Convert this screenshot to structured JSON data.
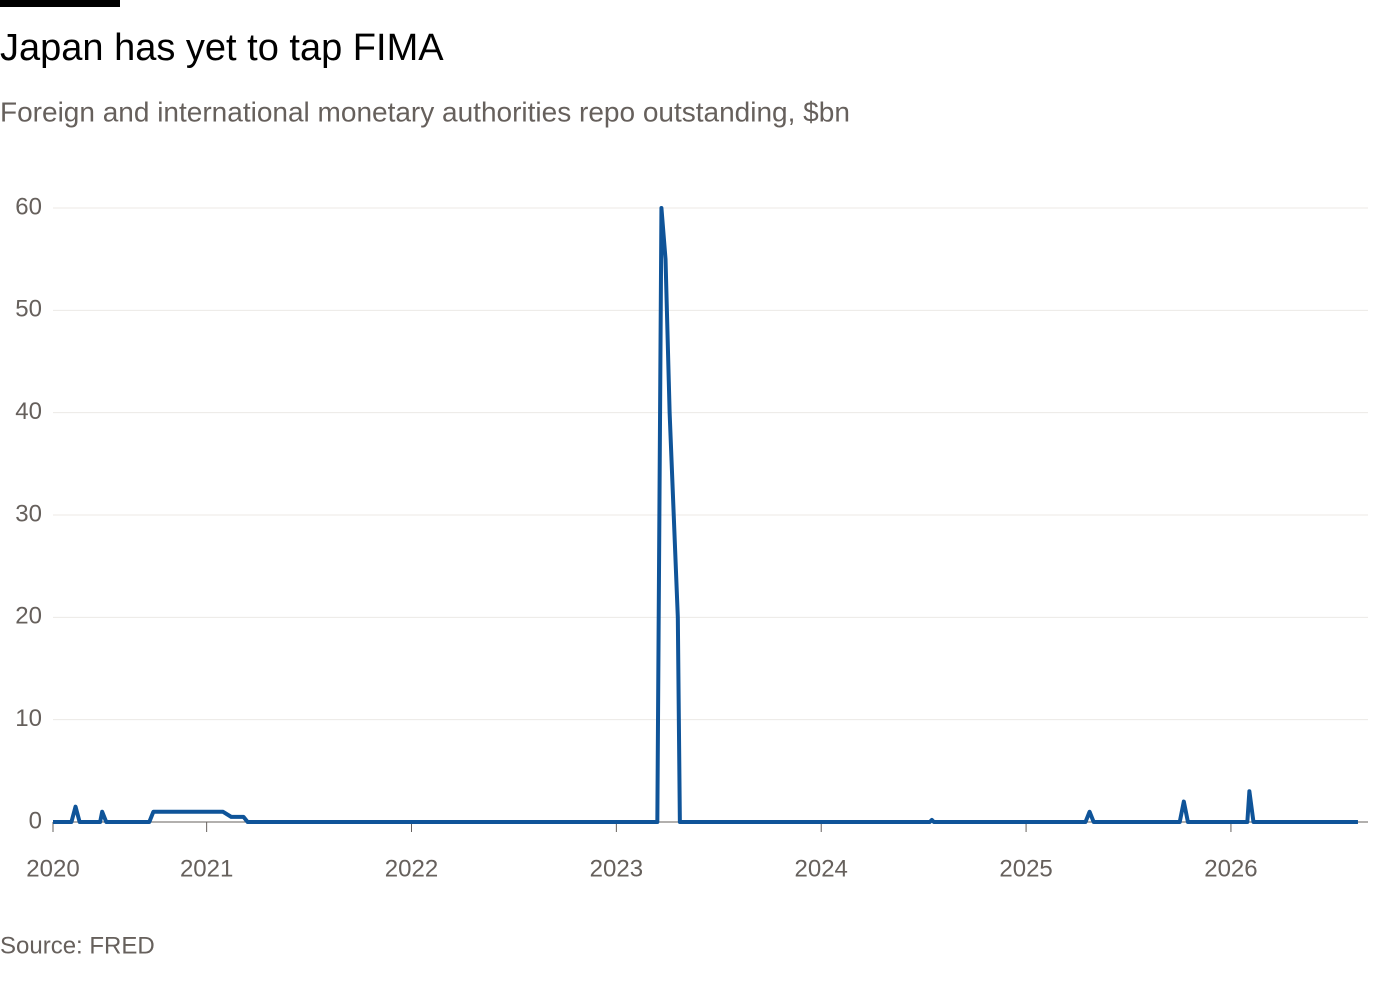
{
  "chart_data": {
    "type": "line",
    "title": "Japan has yet to tap FIMA",
    "subtitle": "Foreign and international monetary authorities repo outstanding, $bn",
    "source": "Source: FRED",
    "x": [
      2020.25,
      2020.34,
      2020.36,
      2020.38,
      2020.48,
      2020.49,
      2020.51,
      2020.72,
      2020.74,
      2021.08,
      2021.12,
      2021.18,
      2021.2,
      2023.2,
      2023.22,
      2023.24,
      2023.26,
      2023.3,
      2023.31,
      2024.53,
      2024.54,
      2024.55,
      2025.29,
      2025.31,
      2025.33,
      2025.75,
      2025.77,
      2025.79,
      2026.08,
      2026.09,
      2026.11,
      2026.62
    ],
    "series": [
      {
        "color": "#0f5499",
        "values": [
          0,
          0,
          1.5,
          0,
          0,
          1,
          0,
          0,
          1,
          1,
          0.5,
          0.5,
          0,
          0,
          60,
          55,
          40,
          20,
          0,
          0,
          0.2,
          0,
          0,
          1,
          0,
          0,
          2,
          0,
          0,
          3,
          0,
          0
        ]
      }
    ],
    "xlim": [
      2020.25,
      2026.63
    ],
    "xticks": [
      2020,
      2021,
      2022,
      2023,
      2024,
      2025,
      2026
    ],
    "ylim": [
      0,
      60
    ],
    "yticks": [
      0,
      10,
      20,
      30,
      40,
      50,
      60
    ],
    "grid": true
  }
}
